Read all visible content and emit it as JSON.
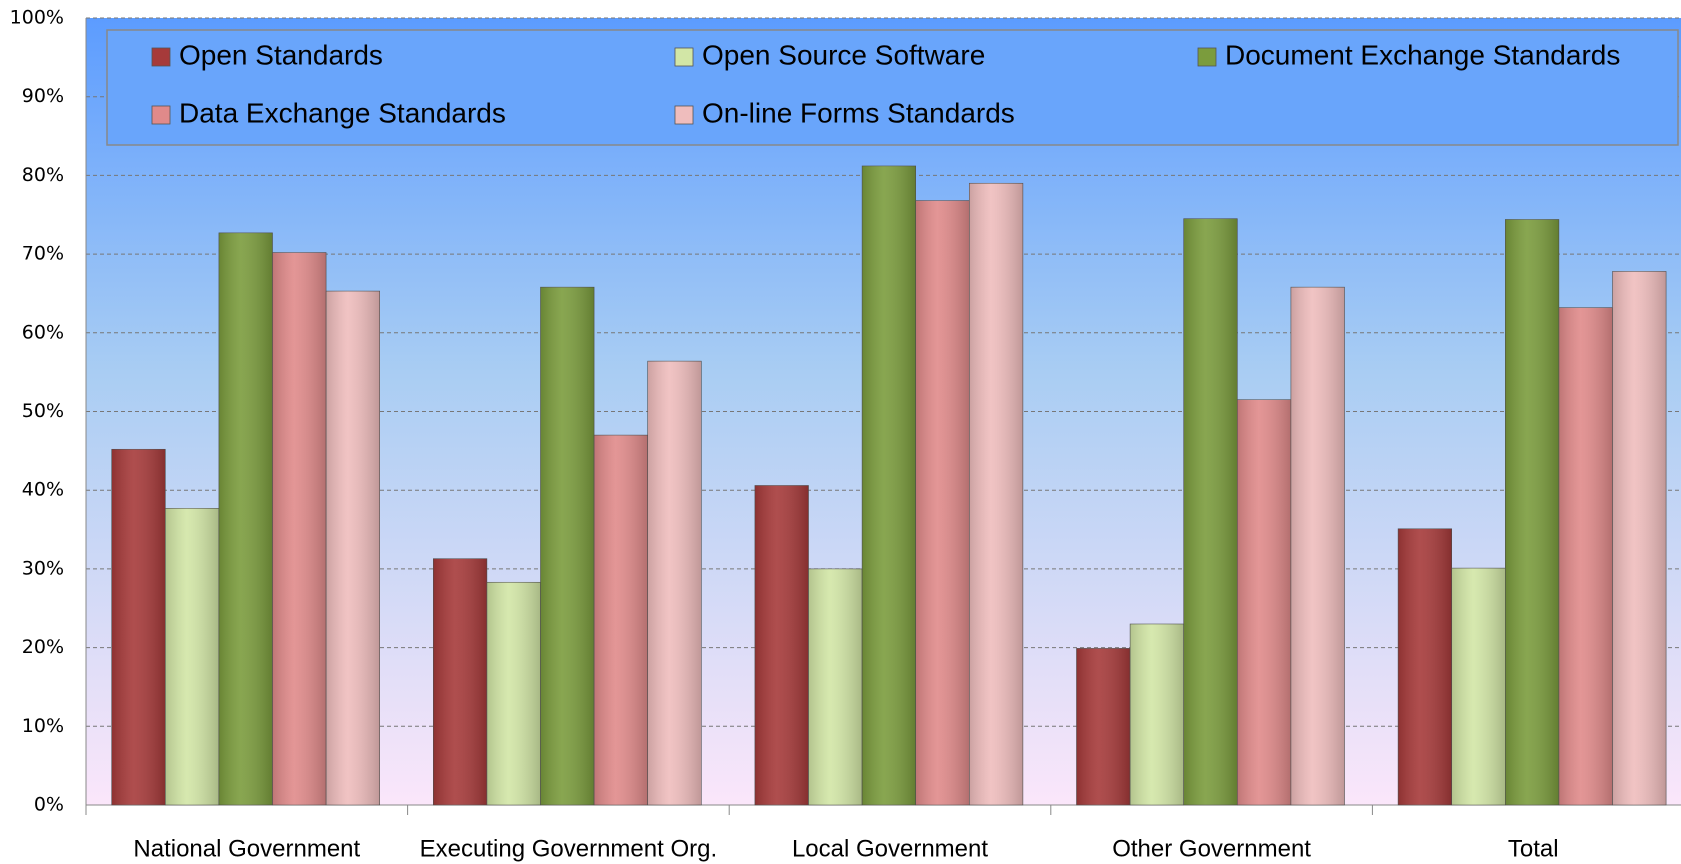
{
  "chart_data": {
    "type": "bar",
    "categories": [
      "National Government",
      "Executing Government Org.",
      "Local Government",
      "Other Government",
      "Total"
    ],
    "series": [
      {
        "name": "Open Standards",
        "color": "#a63a3a",
        "values": [
          45.2,
          31.3,
          40.6,
          19.9,
          35.1
        ]
      },
      {
        "name": "Open Source Software",
        "color": "#d2e6a6",
        "values": [
          37.7,
          28.3,
          30.0,
          23.0,
          30.1
        ]
      },
      {
        "name": "Document Exchange Standards",
        "color": "#7b9c3d",
        "values": [
          72.7,
          65.8,
          81.2,
          74.5,
          74.4
        ]
      },
      {
        "name": "Data Exchange Standards",
        "color": "#e08a8a",
        "values": [
          70.2,
          47.0,
          76.8,
          51.5,
          63.2
        ]
      },
      {
        "name": "On-line Forms Standards",
        "color": "#efbdbd",
        "values": [
          65.3,
          56.4,
          79.0,
          65.8,
          67.8
        ]
      }
    ],
    "ylim": [
      0,
      100
    ],
    "yticks": [
      {
        "value": 0,
        "label": "0%"
      },
      {
        "value": 10,
        "label": "10%"
      },
      {
        "value": 20,
        "label": "20%"
      },
      {
        "value": 30,
        "label": "30%"
      },
      {
        "value": 40,
        "label": "40%"
      },
      {
        "value": 50,
        "label": "50%"
      },
      {
        "value": 60,
        "label": "60%"
      },
      {
        "value": 70,
        "label": "70%"
      },
      {
        "value": 80,
        "label": "80%"
      },
      {
        "value": 90,
        "label": "90%"
      },
      {
        "value": 100,
        "label": "100%"
      }
    ],
    "grid": true,
    "legend": "top"
  }
}
